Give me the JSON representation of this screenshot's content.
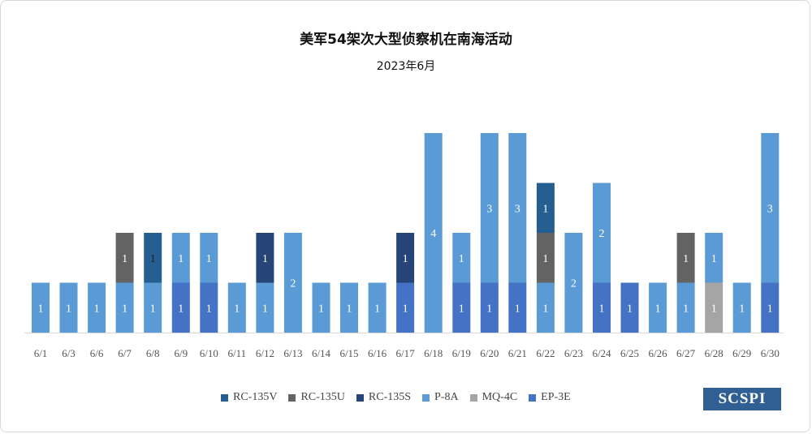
{
  "chart_data": {
    "type": "bar",
    "stacked": true,
    "title": "美军54架次大型侦察机在南海活动",
    "subtitle": "2023年6月",
    "categories": [
      "6/1",
      "6/3",
      "6/6",
      "6/7",
      "6/8",
      "6/9",
      "6/10",
      "6/11",
      "6/12",
      "6/13",
      "6/14",
      "6/15",
      "6/16",
      "6/17",
      "6/18",
      "6/19",
      "6/20",
      "6/21",
      "6/22",
      "6/23",
      "6/24",
      "6/25",
      "6/26",
      "6/27",
      "6/28",
      "6/29",
      "6/30"
    ],
    "series": [
      {
        "name": "EP-3E",
        "color": "#4472c4",
        "values": [
          0,
          0,
          0,
          0,
          0,
          1,
          1,
          0,
          0,
          0,
          0,
          0,
          0,
          1,
          0,
          1,
          1,
          1,
          0,
          0,
          1,
          1,
          0,
          0,
          0,
          0,
          1
        ]
      },
      {
        "name": "MQ-4C",
        "color": "#a5a5a5",
        "values": [
          0,
          0,
          0,
          0,
          0,
          0,
          0,
          0,
          0,
          0,
          0,
          0,
          0,
          0,
          0,
          0,
          0,
          0,
          0,
          0,
          0,
          0,
          0,
          0,
          1,
          0,
          0
        ]
      },
      {
        "name": "P-8A",
        "color": "#5b9bd5",
        "values": [
          1,
          1,
          1,
          1,
          1,
          1,
          1,
          1,
          1,
          2,
          1,
          1,
          1,
          0,
          4,
          1,
          3,
          3,
          1,
          2,
          2,
          0,
          1,
          1,
          1,
          1,
          3
        ]
      },
      {
        "name": "RC-135U",
        "color": "#636363",
        "values": [
          0,
          0,
          0,
          1,
          0,
          0,
          0,
          0,
          0,
          0,
          0,
          0,
          0,
          0,
          0,
          0,
          0,
          0,
          1,
          0,
          0,
          0,
          0,
          1,
          0,
          0,
          0
        ]
      },
      {
        "name": "RC-135S",
        "color": "#264478",
        "values": [
          0,
          0,
          0,
          0,
          0,
          0,
          0,
          0,
          1,
          0,
          0,
          0,
          0,
          1,
          0,
          0,
          0,
          0,
          0,
          0,
          0,
          0,
          0,
          0,
          0,
          0,
          0
        ]
      },
      {
        "name": "RC-135V",
        "color": "#255e91",
        "values": [
          0,
          0,
          0,
          0,
          1,
          0,
          0,
          0,
          0,
          0,
          0,
          0,
          0,
          0,
          0,
          0,
          0,
          0,
          1,
          0,
          0,
          0,
          0,
          0,
          0,
          0,
          0
        ]
      }
    ],
    "legend_order": [
      "RC-135V",
      "RC-135U",
      "RC-135S",
      "P-8A",
      "MQ-4C",
      "EP-3E"
    ],
    "ylim": [
      0,
      4
    ],
    "grid": false,
    "legend_position": "bottom"
  },
  "logo_text": "SCSPI"
}
